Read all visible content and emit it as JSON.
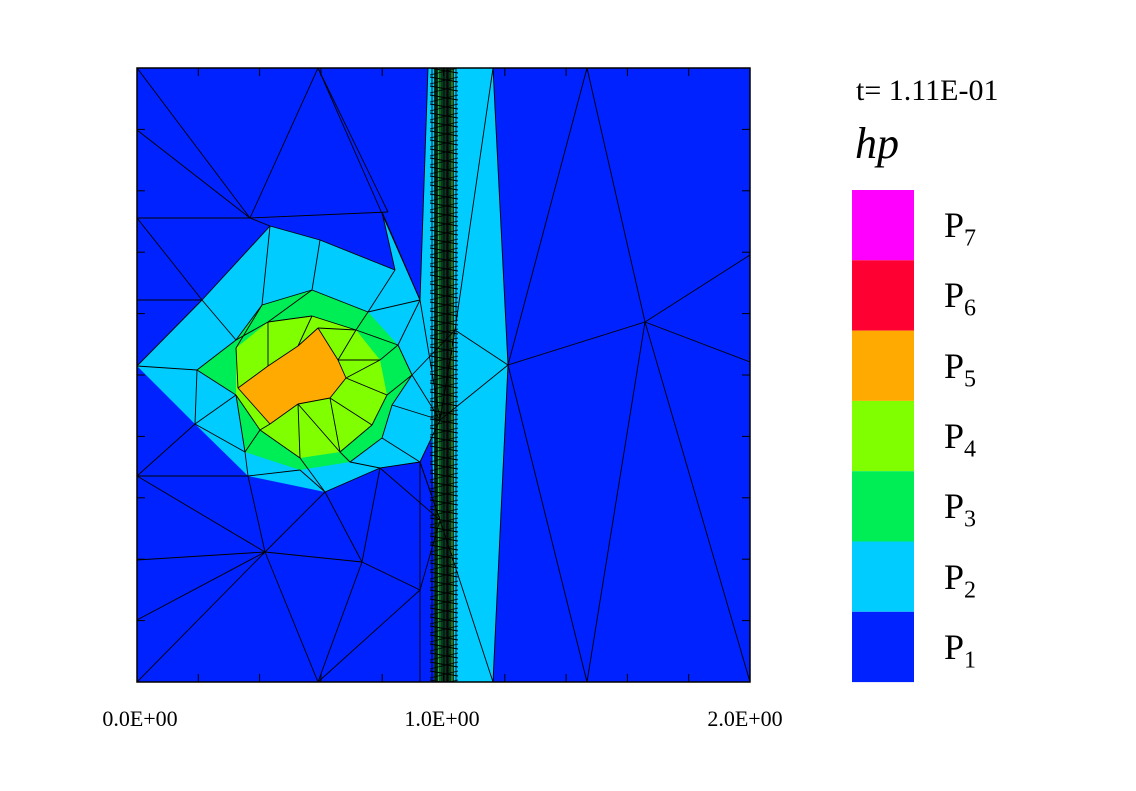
{
  "chart_data": {
    "type": "mesh-field",
    "time_label": "t= 1.11E-01",
    "variable_label": "hp",
    "x_ticks": [
      "0.0E+00",
      "1.0E+00",
      "2.0E+00"
    ],
    "x_range": [
      0,
      2
    ],
    "legend": [
      {
        "base": "P",
        "sub": "7",
        "color": "#ff00ff"
      },
      {
        "base": "P",
        "sub": "6",
        "color": "#ff0033"
      },
      {
        "base": "P",
        "sub": "5",
        "color": "#ffaa00"
      },
      {
        "base": "P",
        "sub": "4",
        "color": "#80ff00"
      },
      {
        "base": "P",
        "sub": "3",
        "color": "#00ee55"
      },
      {
        "base": "P",
        "sub": "2",
        "color": "#00ccff"
      },
      {
        "base": "P",
        "sub": "1",
        "color": "#0022ff"
      }
    ]
  }
}
